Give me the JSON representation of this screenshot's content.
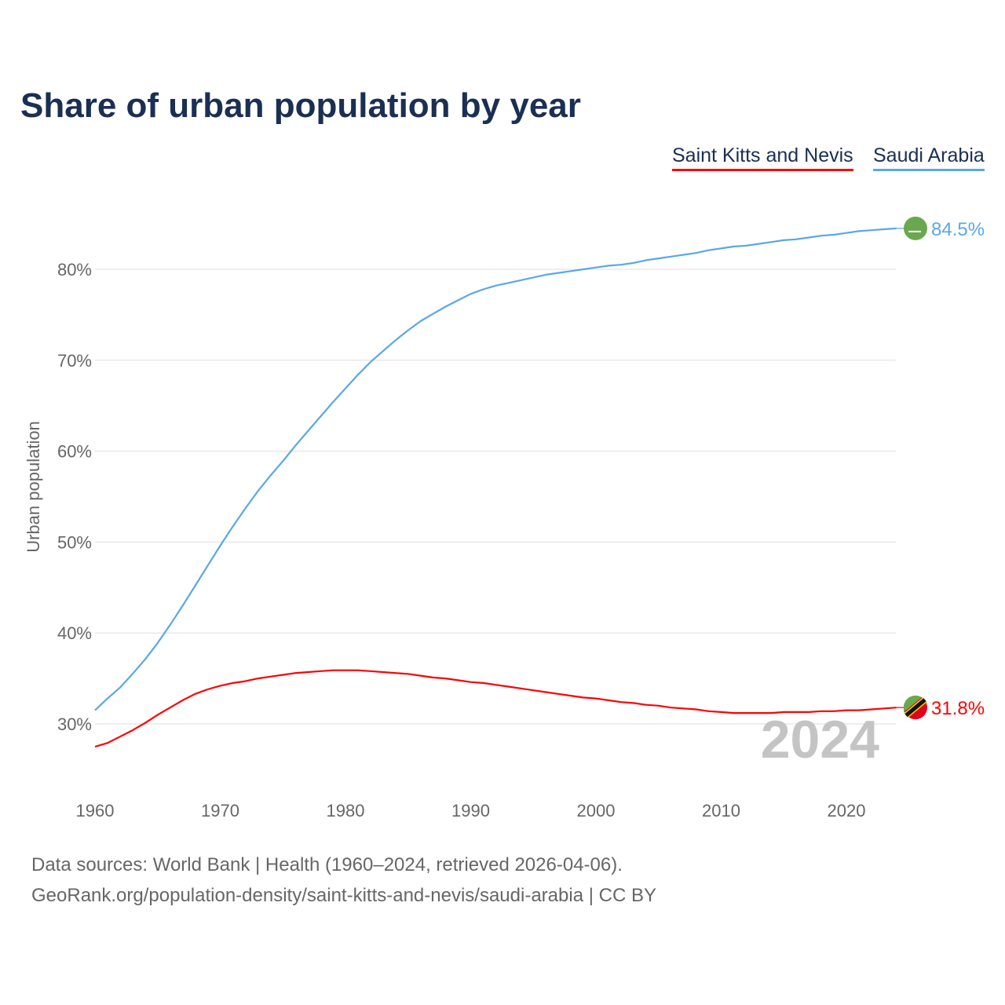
{
  "chart_data": {
    "type": "line",
    "title": "Share of urban population by year",
    "xlabel": "",
    "ylabel": "Urban population",
    "xlim": [
      1960,
      2024
    ],
    "ylim": [
      24,
      88
    ],
    "x_ticks": [
      1960,
      1970,
      1980,
      1990,
      2000,
      2010,
      2020
    ],
    "y_ticks": [
      30,
      40,
      50,
      60,
      70,
      80
    ],
    "y_tick_labels": [
      "30%",
      "40%",
      "50%",
      "60%",
      "70%",
      "80%"
    ],
    "x_tick_labels": [
      "1960",
      "1970",
      "1980",
      "1990",
      "2000",
      "2010",
      "2020"
    ],
    "grid": true,
    "legend_position": "top-right",
    "year_label": "2024",
    "x": [
      1960,
      1961,
      1962,
      1963,
      1964,
      1965,
      1966,
      1967,
      1968,
      1969,
      1970,
      1971,
      1972,
      1973,
      1974,
      1975,
      1976,
      1977,
      1978,
      1979,
      1980,
      1981,
      1982,
      1983,
      1984,
      1985,
      1986,
      1987,
      1988,
      1989,
      1990,
      1991,
      1992,
      1993,
      1994,
      1995,
      1996,
      1997,
      1998,
      1999,
      2000,
      2001,
      2002,
      2003,
      2004,
      2005,
      2006,
      2007,
      2008,
      2009,
      2010,
      2011,
      2012,
      2013,
      2014,
      2015,
      2016,
      2017,
      2018,
      2019,
      2020,
      2021,
      2022,
      2023,
      2024
    ],
    "series": [
      {
        "name": "Saint Kitts and Nevis",
        "color": "#ff0000",
        "end_label": "31.8%",
        "values": [
          27.5,
          27.9,
          28.6,
          29.3,
          30.1,
          31.0,
          31.8,
          32.6,
          33.3,
          33.8,
          34.2,
          34.5,
          34.7,
          35.0,
          35.2,
          35.4,
          35.6,
          35.7,
          35.8,
          35.9,
          35.9,
          35.9,
          35.8,
          35.7,
          35.6,
          35.5,
          35.3,
          35.1,
          35.0,
          34.8,
          34.6,
          34.5,
          34.3,
          34.1,
          33.9,
          33.7,
          33.5,
          33.3,
          33.1,
          32.9,
          32.8,
          32.6,
          32.4,
          32.3,
          32.1,
          32.0,
          31.8,
          31.7,
          31.6,
          31.4,
          31.3,
          31.2,
          31.2,
          31.2,
          31.2,
          31.3,
          31.3,
          31.3,
          31.4,
          31.4,
          31.5,
          31.5,
          31.6,
          31.7,
          31.8
        ]
      },
      {
        "name": "Saudi Arabia",
        "color": "#5aa7e8",
        "end_label": "84.5%",
        "values": [
          31.5,
          32.8,
          34.0,
          35.5,
          37.1,
          38.9,
          40.9,
          43.0,
          45.2,
          47.4,
          49.6,
          51.7,
          53.7,
          55.6,
          57.3,
          58.9,
          60.6,
          62.2,
          63.8,
          65.4,
          66.9,
          68.4,
          69.8,
          71.0,
          72.2,
          73.3,
          74.3,
          75.1,
          75.9,
          76.6,
          77.3,
          77.8,
          78.2,
          78.5,
          78.8,
          79.1,
          79.4,
          79.6,
          79.8,
          80.0,
          80.2,
          80.4,
          80.5,
          80.7,
          81.0,
          81.2,
          81.4,
          81.6,
          81.8,
          82.1,
          82.3,
          82.5,
          82.6,
          82.8,
          83.0,
          83.2,
          83.3,
          83.5,
          83.7,
          83.8,
          84.0,
          84.2,
          84.3,
          84.4,
          84.5
        ]
      }
    ]
  },
  "footer": {
    "line1": "Data sources: World Bank | Health (1960–2024, retrieved 2026-04-06).",
    "line2": "GeoRank.org/population-density/saint-kitts-and-nevis/saudi-arabia | CC BY"
  }
}
